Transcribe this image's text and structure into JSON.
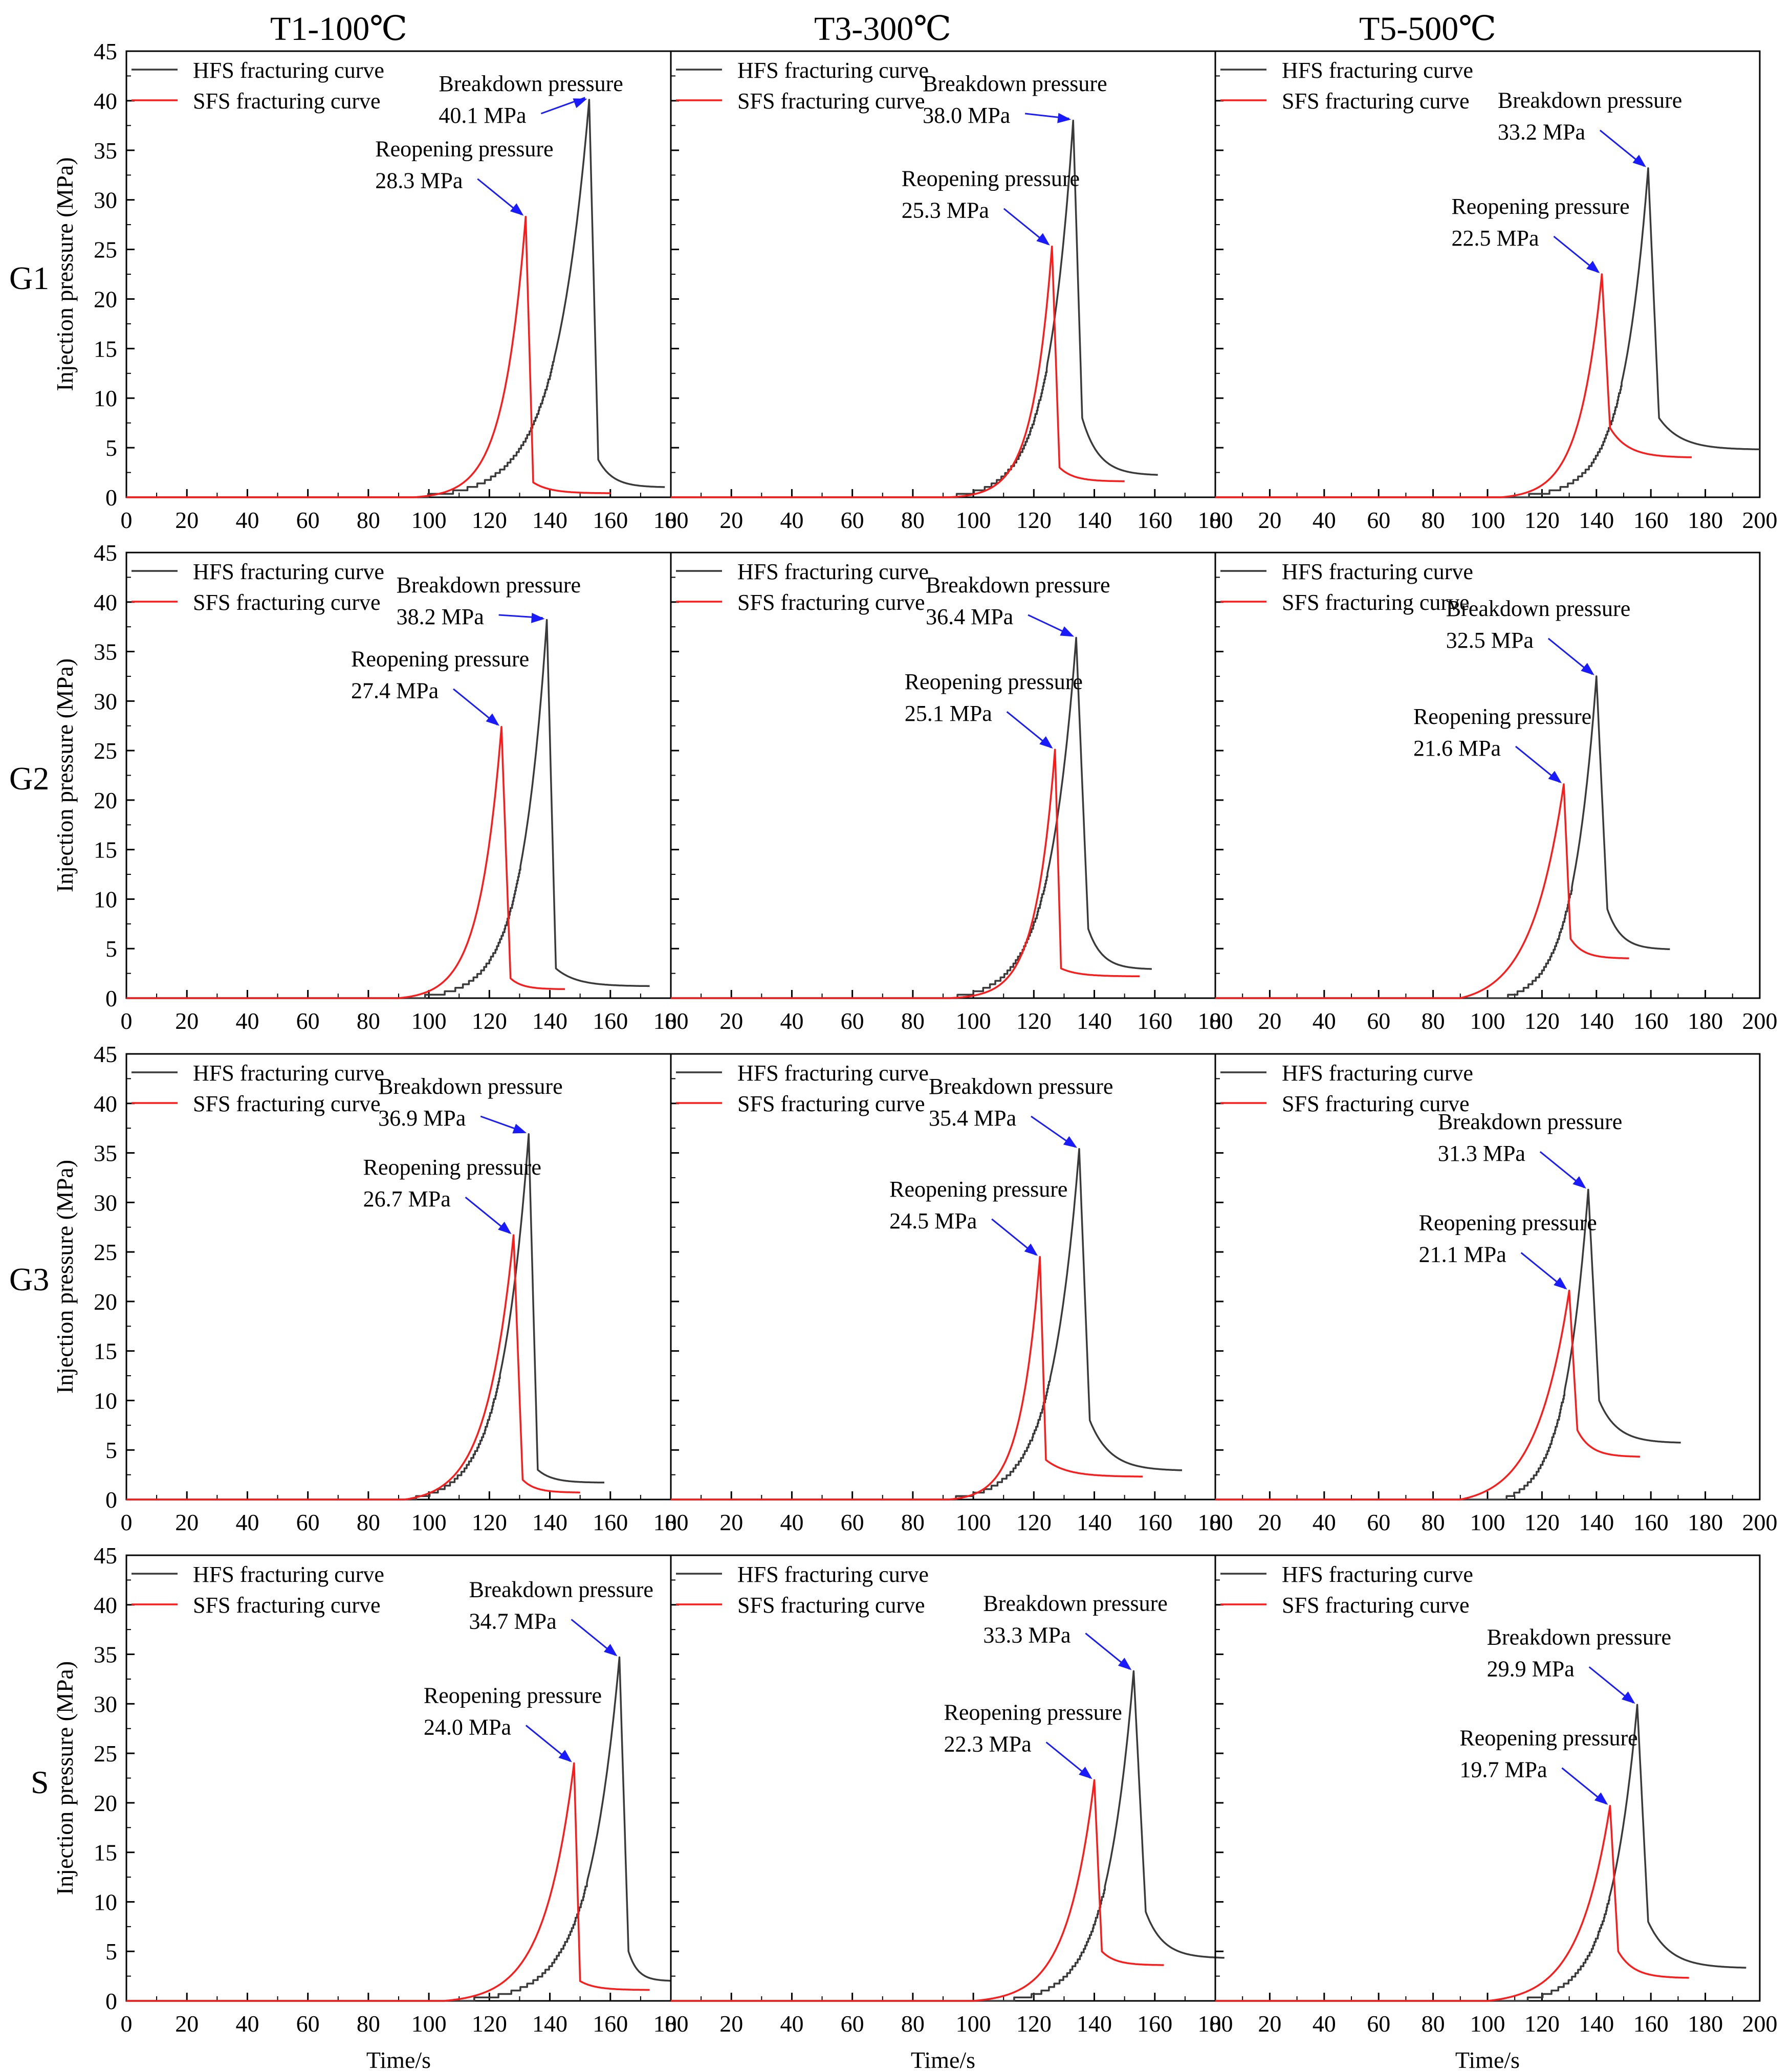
{
  "figure": {
    "columns": [
      "T1-100℃",
      "T3-300℃",
      "T5-500℃"
    ],
    "rows": [
      "G1",
      "G2",
      "G3",
      "S"
    ],
    "xlabel": "Time/s",
    "ylabel": "Injection pressure (MPa)",
    "legend": {
      "hfs": "HFS fracturing curve",
      "sfs": "SFS fracturing curve"
    },
    "colors": {
      "hfs": "#3a3a3a",
      "sfs": "#ff1a1a",
      "arrow": "#1a1aff",
      "axis": "#000000"
    },
    "breakdown_label": "Breakdown pressure",
    "reopening_label": "Reopening pressure",
    "unit": "MPa"
  },
  "chart_data": [
    {
      "type": "line",
      "row": "G1",
      "col": "T1-100℃",
      "xlim": [
        0,
        180
      ],
      "ylim": [
        0,
        45
      ],
      "xticks": [
        0,
        20,
        40,
        60,
        80,
        100,
        120,
        140,
        160,
        180
      ],
      "yticks": [
        0,
        5,
        10,
        15,
        20,
        25,
        30,
        35,
        40,
        45
      ],
      "series": [
        {
          "name": "HFS fracturing curve",
          "peak_x": 153,
          "peak_y": 40.1,
          "start_x": 90,
          "end_x": 178,
          "tail_y": 1.0,
          "knee": 3.8,
          "rise_w": 12,
          "fall_w": 3,
          "steps": true
        },
        {
          "name": "SFS fracturing curve",
          "peak_x": 132,
          "peak_y": 28.3,
          "start_x": 95,
          "end_x": 160,
          "tail_y": 0.4,
          "knee": 1.5,
          "rise_w": 8,
          "fall_w": 2.5,
          "steps": false
        }
      ],
      "breakdown": {
        "value": "40.1 MPa",
        "x": 153,
        "y": 40.1
      },
      "reopening": {
        "value": "28.3 MPa",
        "x": 132,
        "y": 28.3
      }
    },
    {
      "type": "line",
      "row": "G1",
      "col": "T3-300℃",
      "xlim": [
        0,
        180
      ],
      "ylim": [
        0,
        45
      ],
      "xticks": [
        0,
        20,
        40,
        60,
        80,
        100,
        120,
        140,
        160,
        180
      ],
      "yticks": [
        0,
        5,
        10,
        15,
        20,
        25,
        30,
        35,
        40,
        45
      ],
      "series": [
        {
          "name": "HFS fracturing curve",
          "peak_x": 133,
          "peak_y": 38.0,
          "start_x": 88,
          "end_x": 161,
          "tail_y": 2.2,
          "knee": 8,
          "rise_w": 9,
          "fall_w": 3,
          "steps": true
        },
        {
          "name": "SFS fracturing curve",
          "peak_x": 126,
          "peak_y": 25.3,
          "start_x": 92,
          "end_x": 150,
          "tail_y": 1.6,
          "knee": 3,
          "rise_w": 7,
          "fall_w": 2.5,
          "steps": false
        }
      ],
      "breakdown": {
        "value": "38.0 MPa",
        "x": 133,
        "y": 38.0
      },
      "reopening": {
        "value": "25.3 MPa",
        "x": 126,
        "y": 25.3
      }
    },
    {
      "type": "line",
      "row": "G1",
      "col": "T5-500℃",
      "xlim": [
        0,
        200
      ],
      "ylim": [
        0,
        45
      ],
      "xticks": [
        0,
        20,
        40,
        60,
        80,
        100,
        120,
        140,
        160,
        180,
        200
      ],
      "yticks": [
        0,
        5,
        10,
        15,
        20,
        25,
        30,
        35,
        40,
        45
      ],
      "series": [
        {
          "name": "HFS fracturing curve",
          "peak_x": 159,
          "peak_y": 33.2,
          "start_x": 105,
          "end_x": 200,
          "tail_y": 4.8,
          "knee": 8,
          "rise_w": 10,
          "fall_w": 4,
          "steps": true
        },
        {
          "name": "SFS fracturing curve",
          "peak_x": 142,
          "peak_y": 22.5,
          "start_x": 105,
          "end_x": 175,
          "tail_y": 4.0,
          "knee": 7,
          "rise_w": 9,
          "fall_w": 3,
          "steps": false
        }
      ],
      "breakdown": {
        "value": "33.2 MPa",
        "x": 159,
        "y": 33.2
      },
      "reopening": {
        "value": "22.5 MPa",
        "x": 142,
        "y": 22.5
      }
    },
    {
      "type": "line",
      "row": "G2",
      "col": "T1-100℃",
      "xlim": [
        0,
        180
      ],
      "ylim": [
        0,
        45
      ],
      "xticks": [
        0,
        20,
        40,
        60,
        80,
        100,
        120,
        140,
        160,
        180
      ],
      "yticks": [
        0,
        5,
        10,
        15,
        20,
        25,
        30,
        35,
        40,
        45
      ],
      "series": [
        {
          "name": "HFS fracturing curve",
          "peak_x": 139,
          "peak_y": 38.2,
          "start_x": 90,
          "end_x": 173,
          "tail_y": 1.2,
          "knee": 3,
          "rise_w": 9,
          "fall_w": 3,
          "steps": true
        },
        {
          "name": "SFS fracturing curve",
          "peak_x": 124,
          "peak_y": 27.4,
          "start_x": 90,
          "end_x": 145,
          "tail_y": 0.9,
          "knee": 2,
          "rise_w": 8,
          "fall_w": 3,
          "steps": false
        }
      ],
      "breakdown": {
        "value": "38.2 MPa",
        "x": 139,
        "y": 38.2
      },
      "reopening": {
        "value": "27.4 MPa",
        "x": 124,
        "y": 27.4
      }
    },
    {
      "type": "line",
      "row": "G2",
      "col": "T3-300℃",
      "xlim": [
        0,
        180
      ],
      "ylim": [
        0,
        45
      ],
      "xticks": [
        0,
        20,
        40,
        60,
        80,
        100,
        120,
        140,
        160,
        180
      ],
      "yticks": [
        0,
        5,
        10,
        15,
        20,
        25,
        30,
        35,
        40,
        45
      ],
      "series": [
        {
          "name": "HFS fracturing curve",
          "peak_x": 134,
          "peak_y": 36.4,
          "start_x": 90,
          "end_x": 159,
          "tail_y": 2.9,
          "knee": 7,
          "rise_w": 10,
          "fall_w": 4,
          "steps": true
        },
        {
          "name": "SFS fracturing curve",
          "peak_x": 127,
          "peak_y": 25.1,
          "start_x": 92,
          "end_x": 155,
          "tail_y": 2.2,
          "knee": 3,
          "rise_w": 7,
          "fall_w": 2,
          "steps": false
        }
      ],
      "breakdown": {
        "value": "36.4 MPa",
        "x": 134,
        "y": 36.4
      },
      "reopening": {
        "value": "25.1 MPa",
        "x": 127,
        "y": 25.1
      }
    },
    {
      "type": "line",
      "row": "G2",
      "col": "T5-500℃",
      "xlim": [
        0,
        200
      ],
      "ylim": [
        0,
        45
      ],
      "xticks": [
        0,
        20,
        40,
        60,
        80,
        100,
        120,
        140,
        160,
        180,
        200
      ],
      "yticks": [
        0,
        5,
        10,
        15,
        20,
        25,
        30,
        35,
        40,
        45
      ],
      "series": [
        {
          "name": "HFS fracturing curve",
          "peak_x": 140,
          "peak_y": 32.5,
          "start_x": 105,
          "end_x": 167,
          "tail_y": 4.9,
          "knee": 9,
          "rise_w": 10,
          "fall_w": 4,
          "steps": true
        },
        {
          "name": "SFS fracturing curve",
          "peak_x": 128,
          "peak_y": 21.6,
          "start_x": 90,
          "end_x": 152,
          "tail_y": 4.0,
          "knee": 6,
          "rise_w": 14,
          "fall_w": 2.5,
          "steps": false
        }
      ],
      "breakdown": {
        "value": "32.5 MPa",
        "x": 140,
        "y": 32.5
      },
      "reopening": {
        "value": "21.6 MPa",
        "x": 128,
        "y": 21.6
      }
    },
    {
      "type": "line",
      "row": "G3",
      "col": "T1-100℃",
      "xlim": [
        0,
        180
      ],
      "ylim": [
        0,
        45
      ],
      "xticks": [
        0,
        20,
        40,
        60,
        80,
        100,
        120,
        140,
        160,
        180
      ],
      "yticks": [
        0,
        5,
        10,
        15,
        20,
        25,
        30,
        35,
        40,
        45
      ],
      "series": [
        {
          "name": "HFS fracturing curve",
          "peak_x": 133,
          "peak_y": 36.9,
          "start_x": 92,
          "end_x": 158,
          "tail_y": 1.7,
          "knee": 3,
          "rise_w": 10,
          "fall_w": 3,
          "steps": true
        },
        {
          "name": "SFS fracturing curve",
          "peak_x": 128,
          "peak_y": 26.7,
          "start_x": 92,
          "end_x": 150,
          "tail_y": 0.7,
          "knee": 2,
          "rise_w": 10,
          "fall_w": 3,
          "steps": false
        }
      ],
      "breakdown": {
        "value": "36.9 MPa",
        "x": 133,
        "y": 36.9
      },
      "reopening": {
        "value": "26.7 MPa",
        "x": 128,
        "y": 26.7
      }
    },
    {
      "type": "line",
      "row": "G3",
      "col": "T3-300℃",
      "xlim": [
        0,
        180
      ],
      "ylim": [
        0,
        45
      ],
      "xticks": [
        0,
        20,
        40,
        60,
        80,
        100,
        120,
        140,
        160,
        180
      ],
      "yticks": [
        0,
        5,
        10,
        15,
        20,
        25,
        30,
        35,
        40,
        45
      ],
      "series": [
        {
          "name": "HFS fracturing curve",
          "peak_x": 135,
          "peak_y": 35.4,
          "start_x": 88,
          "end_x": 169,
          "tail_y": 2.9,
          "knee": 8,
          "rise_w": 10,
          "fall_w": 3.5,
          "steps": true
        },
        {
          "name": "SFS fracturing curve",
          "peak_x": 122,
          "peak_y": 24.5,
          "start_x": 92,
          "end_x": 156,
          "tail_y": 2.3,
          "knee": 4,
          "rise_w": 7,
          "fall_w": 2,
          "steps": false
        }
      ],
      "breakdown": {
        "value": "35.4 MPa",
        "x": 135,
        "y": 35.4
      },
      "reopening": {
        "value": "24.5 MPa",
        "x": 122,
        "y": 24.5
      }
    },
    {
      "type": "line",
      "row": "G3",
      "col": "T5-500℃",
      "xlim": [
        0,
        200
      ],
      "ylim": [
        0,
        45
      ],
      "xticks": [
        0,
        20,
        40,
        60,
        80,
        100,
        120,
        140,
        160,
        180,
        200
      ],
      "yticks": [
        0,
        5,
        10,
        15,
        20,
        25,
        30,
        35,
        40,
        45
      ],
      "series": [
        {
          "name": "HFS fracturing curve",
          "peak_x": 137,
          "peak_y": 31.3,
          "start_x": 105,
          "end_x": 171,
          "tail_y": 5.7,
          "knee": 10,
          "rise_w": 10,
          "fall_w": 4,
          "steps": true
        },
        {
          "name": "SFS fracturing curve",
          "peak_x": 130,
          "peak_y": 21.1,
          "start_x": 90,
          "end_x": 156,
          "tail_y": 4.3,
          "knee": 7,
          "rise_w": 14,
          "fall_w": 3,
          "steps": false
        }
      ],
      "breakdown": {
        "value": "31.3 MPa",
        "x": 137,
        "y": 31.3
      },
      "reopening": {
        "value": "21.1 MPa",
        "x": 130,
        "y": 21.1
      }
    },
    {
      "type": "line",
      "row": "S",
      "col": "T1-100℃",
      "xlim": [
        0,
        180
      ],
      "ylim": [
        0,
        45
      ],
      "xticks": [
        0,
        20,
        40,
        60,
        80,
        100,
        120,
        140,
        160,
        180
      ],
      "yticks": [
        0,
        5,
        10,
        15,
        20,
        25,
        30,
        35,
        40,
        45
      ],
      "series": [
        {
          "name": "HFS fracturing curve",
          "peak_x": 163,
          "peak_y": 34.7,
          "start_x": 105,
          "end_x": 180,
          "tail_y": 2.0,
          "knee": 5,
          "rise_w": 11,
          "fall_w": 3,
          "steps": true
        },
        {
          "name": "SFS fracturing curve",
          "peak_x": 148,
          "peak_y": 24.0,
          "start_x": 105,
          "end_x": 173,
          "tail_y": 1.1,
          "knee": 2,
          "rise_w": 11,
          "fall_w": 2,
          "steps": false
        }
      ],
      "breakdown": {
        "value": "34.7 MPa",
        "x": 163,
        "y": 34.7
      },
      "reopening": {
        "value": "24.0 MPa",
        "x": 148,
        "y": 24.0
      }
    },
    {
      "type": "line",
      "row": "S",
      "col": "T3-300℃",
      "xlim": [
        0,
        180
      ],
      "ylim": [
        0,
        45
      ],
      "xticks": [
        0,
        20,
        40,
        60,
        80,
        100,
        120,
        140,
        160,
        180
      ],
      "yticks": [
        0,
        5,
        10,
        15,
        20,
        25,
        30,
        35,
        40,
        45
      ],
      "series": [
        {
          "name": "HFS fracturing curve",
          "peak_x": 153,
          "peak_y": 33.3,
          "start_x": 108,
          "end_x": 183,
          "tail_y": 4.3,
          "knee": 9,
          "rise_w": 10,
          "fall_w": 4,
          "steps": true
        },
        {
          "name": "SFS fracturing curve",
          "peak_x": 140,
          "peak_y": 22.3,
          "start_x": 100,
          "end_x": 163,
          "tail_y": 3.6,
          "knee": 5,
          "rise_w": 10,
          "fall_w": 2.5,
          "steps": false
        }
      ],
      "breakdown": {
        "value": "33.3 MPa",
        "x": 153,
        "y": 33.3
      },
      "reopening": {
        "value": "22.3 MPa",
        "x": 140,
        "y": 22.3
      }
    },
    {
      "type": "line",
      "row": "S",
      "col": "T5-500℃",
      "xlim": [
        0,
        200
      ],
      "ylim": [
        0,
        45
      ],
      "xticks": [
        0,
        20,
        40,
        60,
        80,
        100,
        120,
        140,
        160,
        180,
        200
      ],
      "yticks": [
        0,
        5,
        10,
        15,
        20,
        25,
        30,
        35,
        40,
        45
      ],
      "series": [
        {
          "name": "HFS fracturing curve",
          "peak_x": 155,
          "peak_y": 29.9,
          "start_x": 110,
          "end_x": 195,
          "tail_y": 3.3,
          "knee": 8,
          "rise_w": 11,
          "fall_w": 4,
          "steps": true
        },
        {
          "name": "SFS fracturing curve",
          "peak_x": 145,
          "peak_y": 19.7,
          "start_x": 100,
          "end_x": 174,
          "tail_y": 2.3,
          "knee": 5,
          "rise_w": 13,
          "fall_w": 3,
          "steps": false
        }
      ],
      "breakdown": {
        "value": "29.9 MPa",
        "x": 155,
        "y": 29.9
      },
      "reopening": {
        "value": "19.7 MPa",
        "x": 145,
        "y": 19.7
      }
    }
  ]
}
